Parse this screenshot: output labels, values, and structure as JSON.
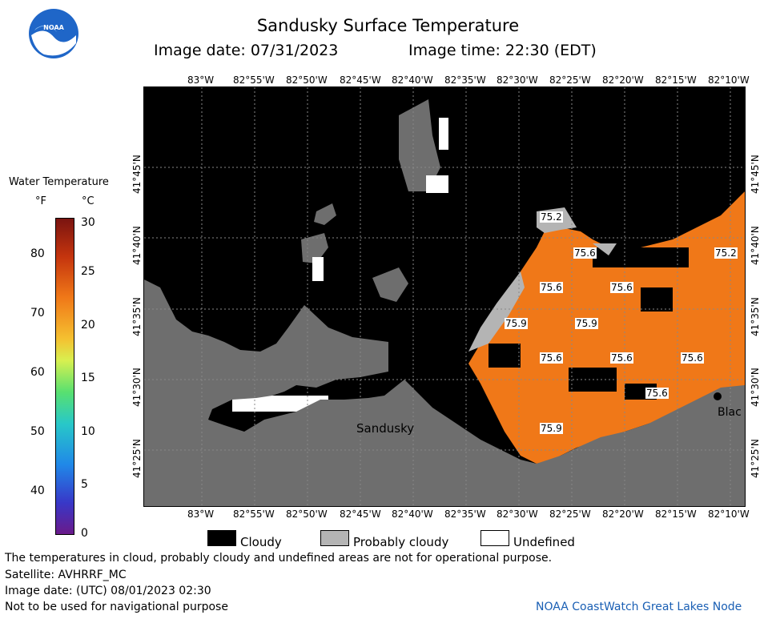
{
  "title": "Sandusky Surface Temperature",
  "image_date": "Image date: 07/31/2023",
  "image_time": "Image time: 22:30 (EDT)",
  "logo_text": "NOAA",
  "colorbar": {
    "title": "Water Temperature",
    "unit_f": "°F",
    "unit_c": "°C",
    "f_ticks": [
      "80",
      "70",
      "60",
      "50",
      "40"
    ],
    "c_ticks": [
      "30",
      "25",
      "20",
      "15",
      "10",
      "5",
      "0"
    ]
  },
  "lon_ticks_top": [
    "83°W",
    "82°55'W",
    "82°50'W",
    "82°45'W",
    "82°40'W",
    "82°35'W",
    "82°30'W",
    "82°25'W",
    "82°20'W",
    "82°15'W",
    "82°10'W"
  ],
  "lon_ticks_bottom": [
    "83°W",
    "82°55'W",
    "82°50'W",
    "82°45'W",
    "82°40'W",
    "82°35'W",
    "82°30'W",
    "82°25'W",
    "82°20'W",
    "82°15'W",
    "82°10'W"
  ],
  "lat_ticks": [
    "41°45'N",
    "41°40'N",
    "41°35'N",
    "41°30'N",
    "41°25'N"
  ],
  "places": {
    "sandusky": "Sandusky",
    "blac": "Blac"
  },
  "temps": [
    "75.2",
    "75.6",
    "75.2",
    "75.6",
    "75.6",
    "75.9",
    "75.9",
    "75.6",
    "75.6",
    "75.6",
    "75.6",
    "75.9"
  ],
  "legend": {
    "cloudy": "Cloudy",
    "probably_cloudy": "Probably cloudy",
    "undefined": "Undefined"
  },
  "footer": {
    "disclaimer": "The temperatures in cloud, probably cloudy and undefined areas are not for operational purpose.",
    "satellite": "Satellite: AVHRRF_MC",
    "utc_date": "Image date: (UTC) 08/01/2023  02:30",
    "nav": "Not to be used for navigational purpose",
    "credit": "NOAA CoastWatch Great Lakes Node"
  },
  "colors": {
    "water": "#000000",
    "land": "#6e6e6e",
    "probably_cloudy": "#b4b4b4",
    "warm": "#f07818",
    "credit": "#1a5fb4"
  }
}
